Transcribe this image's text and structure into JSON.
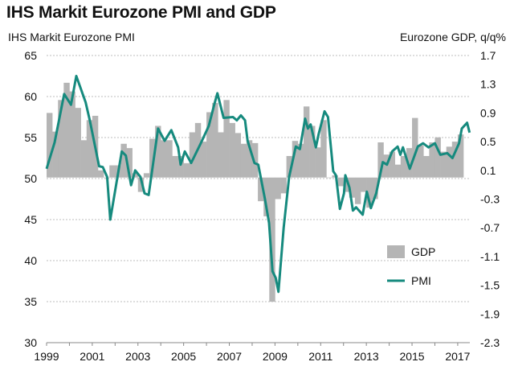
{
  "chart_data": {
    "type": "bar+line",
    "title": "IHS Markit Eurozone PMI and GDP",
    "ylabel_left": "IHS Markit Eurozone PMI",
    "ylabel_right": "Eurozone GDP, q/q%",
    "xlabel": "",
    "x_ticks": [
      "1999",
      "2001",
      "2003",
      "2005",
      "2007",
      "2009",
      "2011",
      "2013",
      "2015",
      "2017"
    ],
    "y_left_ticks": [
      "65",
      "60",
      "55",
      "50",
      "45",
      "40",
      "35",
      "30"
    ],
    "y_left_range": [
      30,
      65
    ],
    "y_right_ticks": [
      "1.7",
      "1.3",
      "0.9",
      "0.5",
      "0.1",
      "-0.3",
      "-0.7",
      "-1.1",
      "-1.5",
      "-1.9",
      "-2.3"
    ],
    "y_right_range": [
      -2.3,
      1.7
    ],
    "x_range": [
      1999,
      2017.55
    ],
    "grid": "horizontal dashed",
    "legend": {
      "placement": "bottom-right",
      "entries": [
        "GDP",
        "PMI"
      ]
    },
    "colors": {
      "gdp": "#b5b5b5",
      "pmi": "#168a7e",
      "grid": "#bdbdbd"
    },
    "series": [
      {
        "name": "GDP",
        "type": "bar",
        "axis": "right",
        "start_year": 1999,
        "step_years": 0.25,
        "values": [
          0.9,
          0.64,
          1.08,
          1.32,
          1.2,
          0.97,
          0.52,
          0.8,
          0.86,
          0.1,
          0.0,
          0.17,
          0.17,
          0.47,
          0.41,
          0.06,
          -0.2,
          0.06,
          0.54,
          0.72,
          0.52,
          0.52,
          0.3,
          0.3,
          0.2,
          0.63,
          0.76,
          0.5,
          0.91,
          1.04,
          0.63,
          1.08,
          0.76,
          0.62,
          0.47,
          0.52,
          0.48,
          -0.33,
          -0.54,
          -1.73,
          -0.3,
          -0.22,
          0.3,
          0.51,
          0.47,
          0.99,
          0.72,
          0.42,
          0.8,
          0.0,
          0.03,
          -0.12,
          -0.2,
          -0.28,
          -0.37,
          -0.2,
          -0.42,
          -0.3,
          0.49,
          0.32,
          0.36,
          0.18,
          0.3,
          0.41,
          0.83,
          0.45,
          0.3,
          0.49,
          0.56,
          0.36,
          0.43,
          0.5,
          0.6
        ]
      },
      {
        "name": "PMI",
        "type": "line",
        "axis": "left",
        "x": [
          1999.0,
          1999.35,
          1999.77,
          2000.07,
          2000.3,
          2000.71,
          2000.89,
          2001.3,
          2001.46,
          2001.65,
          2001.79,
          2002.29,
          2002.47,
          2002.7,
          2002.88,
          2003.11,
          2003.29,
          2003.47,
          2003.88,
          2004.17,
          2004.46,
          2004.76,
          2004.87,
          2005.05,
          2005.33,
          2005.75,
          2006.1,
          2006.34,
          2006.48,
          2006.75,
          2007.16,
          2007.33,
          2007.51,
          2007.69,
          2007.8,
          2008.1,
          2008.27,
          2008.56,
          2008.74,
          2008.89,
          2009.03,
          2009.15,
          2009.38,
          2009.62,
          2009.91,
          2010.09,
          2010.32,
          2010.44,
          2010.56,
          2010.79,
          2010.91,
          2011.17,
          2011.32,
          2011.55,
          2011.67,
          2011.84,
          2012.02,
          2012.08,
          2012.26,
          2012.41,
          2012.55,
          2012.84,
          2013.02,
          2013.2,
          2013.43,
          2013.72,
          2013.9,
          2014.13,
          2014.37,
          2014.49,
          2014.6,
          2014.9,
          2015.25,
          2015.48,
          2015.72,
          2016.0,
          2016.24,
          2016.54,
          2016.77,
          2017.06,
          2017.18,
          2017.41,
          2017.52
        ],
        "y": [
          51.2,
          54.4,
          60.3,
          59.0,
          62.5,
          59.3,
          57.1,
          51.5,
          51.4,
          50.2,
          45.0,
          53.3,
          52.8,
          49.2,
          51.0,
          50.2,
          48.2,
          48.0,
          56.1,
          54.6,
          55.9,
          53.8,
          51.7,
          53.3,
          51.9,
          54.3,
          56.4,
          59.0,
          60.4,
          57.4,
          57.5,
          57.1,
          57.7,
          57.1,
          54.6,
          51.9,
          51.7,
          47.5,
          44.6,
          38.7,
          37.9,
          36.2,
          44.0,
          50.2,
          53.9,
          53.6,
          57.3,
          56.1,
          56.6,
          53.8,
          55.4,
          58.2,
          57.5,
          50.9,
          50.4,
          46.3,
          48.2,
          50.4,
          48.9,
          46.1,
          46.5,
          45.6,
          48.4,
          46.4,
          48.2,
          52.0,
          51.7,
          53.3,
          53.9,
          52.9,
          53.8,
          51.2,
          53.9,
          54.3,
          53.8,
          54.3,
          52.9,
          53.1,
          52.5,
          54.3,
          56.1,
          56.8,
          55.6
        ]
      }
    ]
  }
}
